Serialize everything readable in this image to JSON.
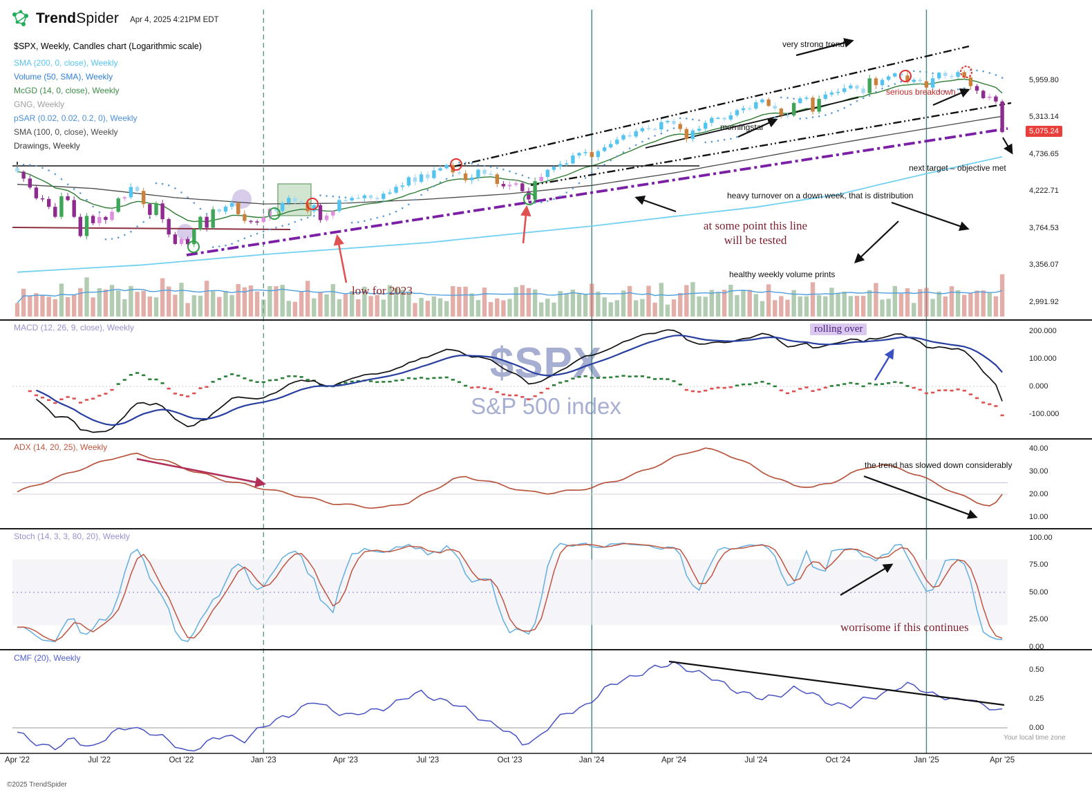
{
  "header": {
    "brand_trend": "Trend",
    "brand_spider": "Spider",
    "timestamp": "Apr 4, 2025 4:21PM EDT"
  },
  "chart_title": "$SPX, Weekly, Candles chart (Logarithmic scale)",
  "legend": [
    {
      "label": "SMA (200, 0, close), Weekly",
      "color": "#56c5f0"
    },
    {
      "label": "Volume (50, SMA), Weekly",
      "color": "#2f7ed8"
    },
    {
      "label": "McGD (14, 0, close), Weekly",
      "color": "#3c8d46"
    },
    {
      "label": "GNG, Weekly",
      "color": "#a0a0a0"
    },
    {
      "label": "pSAR (0.02, 0.02, 0.2, 0), Weekly",
      "color": "#4a90d9"
    },
    {
      "label": "SMA (100, 0, close), Weekly",
      "color": "#474747"
    },
    {
      "label": "Drawings, Weekly",
      "color": "#333333"
    }
  ],
  "price_scale": {
    "ticks": [
      {
        "v": 5959.8,
        "t": "5,959.80"
      },
      {
        "v": 5313.14,
        "t": "5,313.14"
      },
      {
        "v": 4736.65,
        "t": "4,736.65"
      },
      {
        "v": 4222.71,
        "t": "4,222.71"
      },
      {
        "v": 3764.53,
        "t": "3,764.53"
      },
      {
        "v": 3356.07,
        "t": "3,356.07"
      },
      {
        "v": 2991.92,
        "t": "2,991.92"
      }
    ],
    "last_price_badge": {
      "v": 5075.24,
      "t": "5,075.24",
      "color": "#e93f3b"
    }
  },
  "panes": {
    "macd": {
      "label": "MACD (12, 26, 9, close), Weekly",
      "color": "#9a8fd0",
      "ticks": [
        {
          "v": 200,
          "t": "200.000"
        },
        {
          "v": 100,
          "t": "100.000"
        },
        {
          "v": 0,
          "t": "0.000"
        },
        {
          "v": -100,
          "t": "-100.000"
        }
      ]
    },
    "adx": {
      "label": "ADX (14, 20, 25), Weekly",
      "color": "#c05540",
      "ticks": [
        {
          "v": 40,
          "t": "40.00"
        },
        {
          "v": 30,
          "t": "30.00"
        },
        {
          "v": 20,
          "t": "20.00"
        },
        {
          "v": 10,
          "t": "10.00"
        }
      ]
    },
    "stoch": {
      "label": "Stoch (14, 3, 3, 80, 20), Weekly",
      "color": "#9a8fd0",
      "ticks": [
        {
          "v": 100,
          "t": "100.00"
        },
        {
          "v": 75,
          "t": "75.00"
        },
        {
          "v": 50,
          "t": "50.00"
        },
        {
          "v": 25,
          "t": "25.00"
        },
        {
          "v": 0,
          "t": "0.00"
        }
      ]
    },
    "cmf": {
      "label": "CMF (20), Weekly",
      "color": "#4f5fd0",
      "ticks": [
        {
          "v": 0.5,
          "t": "0.50"
        },
        {
          "v": 0.25,
          "t": "0.25"
        },
        {
          "v": 0,
          "t": "0.00"
        }
      ]
    }
  },
  "annotations": [
    {
      "id": "very_strong_trend",
      "text": "very strong trend"
    },
    {
      "id": "serious_breakdown",
      "text": "serious breakdown"
    },
    {
      "id": "morningstar",
      "text": "morningstar"
    },
    {
      "id": "next_target",
      "text": "next target – objective met"
    },
    {
      "id": "heavy_turnover",
      "text": "heavy turnover on a down week, that is distribution"
    },
    {
      "id": "at_some_point",
      "text": "at some point this line will be tested"
    },
    {
      "id": "healthy_volume",
      "text": "healthy weekly volume prints"
    },
    {
      "id": "low_for_2023",
      "text": "low for 2023"
    },
    {
      "id": "rolling_over",
      "text": "rolling over"
    },
    {
      "id": "trend_slowed",
      "text": "the trend has slowed down considerably"
    },
    {
      "id": "worrisome",
      "text": "worrisome if this continues"
    }
  ],
  "watermark": {
    "symbol": "$SPX",
    "name": "S&P 500 index"
  },
  "footer": {
    "copyright": "©2025 TrendSpider",
    "timezone_note": "Your local time zone"
  },
  "x_axis": [
    {
      "t": "Apr '22",
      "i": 0
    },
    {
      "t": "Jul '22",
      "i": 13
    },
    {
      "t": "Oct '22",
      "i": 26
    },
    {
      "t": "Jan '23",
      "i": 39
    },
    {
      "t": "Apr '23",
      "i": 52
    },
    {
      "t": "Jul '23",
      "i": 65
    },
    {
      "t": "Oct '23",
      "i": 78
    },
    {
      "t": "Jan '24",
      "i": 91
    },
    {
      "t": "Apr '24",
      "i": 104
    },
    {
      "t": "Jul '24",
      "i": 117
    },
    {
      "t": "Oct '24",
      "i": 130
    },
    {
      "t": "Jan '25",
      "i": 144
    },
    {
      "t": "Apr '25",
      "i": 156
    }
  ],
  "chart_data": {
    "type": "candlestick",
    "symbol": "$SPX",
    "name": "S&P 500 index",
    "timeframe": "Weekly",
    "scale": "Logarithmic",
    "first_week": "2022-04-04",
    "last_week": "2025-03-31",
    "first_open": 4540,
    "last_close": 5075.24,
    "price_axis_range": [
      2900,
      6300
    ],
    "closes": [
      4488,
      4393,
      4272,
      4132,
      4123,
      4024,
      3901,
      4158,
      4109,
      3901,
      3675,
      3912,
      3825,
      3899,
      3863,
      3962,
      4130,
      4145,
      4280,
      4228,
      4058,
      3924,
      4067,
      3873,
      3693,
      3586,
      3640,
      3583,
      3753,
      3901,
      3771,
      3993,
      3965,
      4026,
      4072,
      3934,
      3852,
      3845,
      3839,
      3895,
      3999,
      3973,
      4071,
      4136,
      4090,
      4079,
      3970,
      4045,
      3862,
      3917,
      3971,
      4109,
      4105,
      4138,
      4133,
      4169,
      4136,
      4124,
      4192,
      4205,
      4282,
      4299,
      4410,
      4348,
      4450,
      4399,
      4505,
      4536,
      4582,
      4478,
      4464,
      4370,
      4406,
      4516,
      4457,
      4450,
      4320,
      4288,
      4309,
      4328,
      4224,
      4117,
      4358,
      4415,
      4514,
      4559,
      4595,
      4604,
      4719,
      4755,
      4770,
      4697,
      4784,
      4840,
      4891,
      4959,
      5027,
      5006,
      5089,
      5137,
      5124,
      5117,
      5234,
      5254,
      5204,
      5123,
      4967,
      5100,
      5128,
      5223,
      5303,
      5305,
      5278,
      5347,
      5432,
      5465,
      5460,
      5567,
      5615,
      5505,
      5459,
      5347,
      5344,
      5554,
      5635,
      5648,
      5408,
      5626,
      5703,
      5738,
      5751,
      5815,
      5865,
      5808,
      5729,
      5996,
      5871,
      5969,
      6032,
      6090,
      6051,
      5931,
      5971,
      5942,
      5827,
      5997,
      6101,
      6041,
      6026,
      6115,
      6013,
      5855,
      5770,
      5639,
      5668,
      5581,
      5075.24
    ],
    "sma200_anchors": [
      [
        0,
        3285
      ],
      [
        20,
        3360
      ],
      [
        39,
        3470
      ],
      [
        65,
        3600
      ],
      [
        91,
        3790
      ],
      [
        117,
        4020
      ],
      [
        130,
        4180
      ],
      [
        144,
        4460
      ],
      [
        150,
        4580
      ],
      [
        156,
        4700
      ]
    ],
    "sma100_anchors": [
      [
        0,
        4315
      ],
      [
        12,
        4260
      ],
      [
        25,
        4140
      ],
      [
        39,
        4060
      ],
      [
        52,
        4070
      ],
      [
        65,
        4120
      ],
      [
        78,
        4190
      ],
      [
        91,
        4300
      ],
      [
        104,
        4470
      ],
      [
        117,
        4680
      ],
      [
        130,
        4900
      ],
      [
        144,
        5130
      ],
      [
        156,
        5330
      ]
    ],
    "adx_anchors": [
      [
        0,
        21
      ],
      [
        4,
        25
      ],
      [
        10,
        31
      ],
      [
        16,
        36.5
      ],
      [
        19,
        37.5
      ],
      [
        23,
        35
      ],
      [
        28,
        30
      ],
      [
        33,
        26
      ],
      [
        39,
        22.5
      ],
      [
        45,
        19
      ],
      [
        50,
        16
      ],
      [
        55,
        14.5
      ],
      [
        58,
        14
      ],
      [
        62,
        16.5
      ],
      [
        66,
        22
      ],
      [
        69,
        26.5
      ],
      [
        71,
        27.5
      ],
      [
        74,
        26
      ],
      [
        78,
        23
      ],
      [
        81,
        21
      ],
      [
        84,
        20.5
      ],
      [
        88,
        21.5
      ],
      [
        91,
        23
      ],
      [
        95,
        26
      ],
      [
        100,
        31
      ],
      [
        104,
        36
      ],
      [
        107,
        39
      ],
      [
        109,
        40
      ],
      [
        112,
        38
      ],
      [
        116,
        33
      ],
      [
        120,
        27
      ],
      [
        123,
        24
      ],
      [
        126,
        23
      ],
      [
        129,
        25
      ],
      [
        132,
        29
      ],
      [
        135,
        32
      ],
      [
        137,
        33
      ],
      [
        140,
        31
      ],
      [
        143,
        28
      ],
      [
        146,
        24
      ],
      [
        149,
        20
      ],
      [
        152,
        16.5
      ],
      [
        154,
        15
      ],
      [
        155,
        16
      ],
      [
        156,
        19.5
      ]
    ],
    "cmf_anchors": [
      [
        0,
        -0.05
      ],
      [
        3,
        -0.12
      ],
      [
        6,
        -0.18
      ],
      [
        9,
        -0.1
      ],
      [
        12,
        -0.16
      ],
      [
        15,
        -0.06
      ],
      [
        18,
        0.02
      ],
      [
        21,
        -0.04
      ],
      [
        24,
        -0.12
      ],
      [
        27,
        -0.2
      ],
      [
        30,
        -0.14
      ],
      [
        33,
        -0.06
      ],
      [
        36,
        -0.1
      ],
      [
        39,
        0.0
      ],
      [
        42,
        0.1
      ],
      [
        45,
        0.16
      ],
      [
        47,
        0.22
      ],
      [
        50,
        0.16
      ],
      [
        53,
        0.1
      ],
      [
        56,
        0.14
      ],
      [
        59,
        0.2
      ],
      [
        62,
        0.26
      ],
      [
        64,
        0.3
      ],
      [
        67,
        0.25
      ],
      [
        70,
        0.18
      ],
      [
        73,
        0.1
      ],
      [
        76,
        0.02
      ],
      [
        78,
        -0.06
      ],
      [
        80,
        -0.13
      ],
      [
        82,
        -0.1
      ],
      [
        84,
        0.0
      ],
      [
        87,
        0.12
      ],
      [
        90,
        0.2
      ],
      [
        93,
        0.32
      ],
      [
        96,
        0.42
      ],
      [
        99,
        0.48
      ],
      [
        102,
        0.52
      ],
      [
        104,
        0.56
      ],
      [
        106,
        0.52
      ],
      [
        109,
        0.44
      ],
      [
        112,
        0.38
      ],
      [
        115,
        0.3
      ],
      [
        118,
        0.24
      ],
      [
        120,
        0.28
      ],
      [
        123,
        0.34
      ],
      [
        126,
        0.28
      ],
      [
        129,
        0.22
      ],
      [
        132,
        0.18
      ],
      [
        135,
        0.26
      ],
      [
        138,
        0.32
      ],
      [
        141,
        0.36
      ],
      [
        143,
        0.34
      ],
      [
        145,
        0.3
      ],
      [
        147,
        0.26
      ],
      [
        149,
        0.22
      ],
      [
        151,
        0.26
      ],
      [
        153,
        0.2
      ],
      [
        155,
        0.16
      ],
      [
        156,
        0.13
      ]
    ],
    "indicator_params": {
      "macd": [
        12,
        26,
        9
      ],
      "adx": [
        14,
        20,
        25
      ],
      "stoch": [
        14,
        3,
        3,
        80,
        20
      ],
      "cmf": [
        20
      ],
      "sma": [
        200,
        100
      ],
      "mcgd": [
        14
      ],
      "psar": [
        0.02,
        0.02,
        0.2,
        0
      ]
    }
  }
}
